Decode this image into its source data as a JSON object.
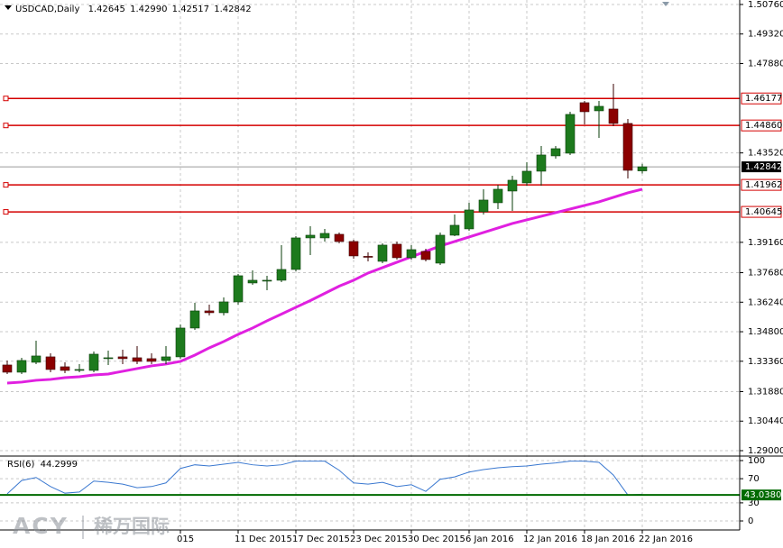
{
  "chart_data": {
    "type": "candlestick",
    "title": "USDCAD,Daily",
    "title_values": [
      {
        "value": 1.42645,
        "label": "1.42645"
      },
      {
        "value": 1.4299,
        "label": "1.42990"
      },
      {
        "value": 1.42517,
        "label": "1.42517"
      },
      {
        "value": 1.42842,
        "label": "1.42842"
      }
    ],
    "categories": [
      null,
      null,
      null,
      null,
      null,
      null,
      null,
      null,
      null,
      null,
      null,
      null,
      "015",
      null,
      null,
      null,
      "11 Dec 2015",
      null,
      null,
      null,
      "17 Dec 2015",
      null,
      null,
      null,
      "23 Dec 2015",
      null,
      null,
      null,
      "30 Dec 2015",
      null,
      null,
      null,
      "6 Jan 2016",
      null,
      null,
      null,
      "12 Jan 2016",
      null,
      null,
      null,
      "18 Jan 2016",
      null,
      null,
      null,
      "22 Jan 2016"
    ],
    "open": [
      1.33178,
      1.32826,
      1.3331,
      1.33574,
      1.3309,
      1.32914,
      1.32914,
      1.33508,
      1.33574,
      1.3353,
      1.33486,
      1.33398,
      1.33574,
      1.3498,
      1.35815,
      1.35727,
      1.36255,
      1.37178,
      1.37288,
      1.3731,
      1.37837,
      1.39376,
      1.39376,
      1.39551,
      1.392,
      1.38475,
      1.38233,
      1.39068,
      1.38409,
      1.38716,
      1.38145,
      1.39507,
      1.39815,
      1.4065,
      1.4109,
      1.41661,
      1.42057,
      1.42628,
      1.43376,
      1.43507,
      1.45969,
      1.45573,
      1.45661,
      1.44958,
      1.42645
    ],
    "high": [
      1.33398,
      1.3353,
      1.34365,
      1.33749,
      1.3331,
      1.33222,
      1.33837,
      1.33881,
      1.33925,
      1.34101,
      1.33749,
      1.34101,
      1.35156,
      1.36211,
      1.36123,
      1.36475,
      1.37617,
      1.37793,
      1.3753,
      1.39024,
      1.39464,
      1.39947,
      1.39815,
      1.39639,
      1.39288,
      1.38672,
      1.39112,
      1.392,
      1.39024,
      1.38848,
      1.39639,
      1.40519,
      1.4109,
      1.41749,
      1.41969,
      1.42409,
      1.43068,
      1.43859,
      1.43859,
      1.45529,
      1.46057,
      1.46057,
      1.46892,
      1.45178,
      1.4299
    ],
    "low": [
      1.32738,
      1.32738,
      1.33222,
      1.32826,
      1.32782,
      1.32826,
      1.32826,
      1.33178,
      1.33222,
      1.33222,
      1.33222,
      1.33222,
      1.33486,
      1.34892,
      1.35595,
      1.35595,
      1.36123,
      1.3709,
      1.36826,
      1.37222,
      1.37749,
      1.3854,
      1.392,
      1.39112,
      1.38365,
      1.38233,
      1.38145,
      1.38321,
      1.38321,
      1.38233,
      1.38057,
      1.39464,
      1.39727,
      1.40519,
      1.40782,
      1.40694,
      1.41925,
      1.41925,
      1.43244,
      1.4342,
      1.44914,
      1.44255,
      1.44826,
      1.42277,
      1.42517
    ],
    "close": [
      1.32826,
      1.33398,
      1.33618,
      1.32958,
      1.32914,
      1.32958,
      1.33705,
      1.3353,
      1.33486,
      1.33354,
      1.33354,
      1.33574,
      1.3498,
      1.35815,
      1.35727,
      1.36255,
      1.3753,
      1.3731,
      1.3731,
      1.37837,
      1.39376,
      1.39507,
      1.39595,
      1.392,
      1.38497,
      1.38453,
      1.39024,
      1.38409,
      1.38804,
      1.38321,
      1.39507,
      1.39991,
      1.40738,
      1.41222,
      1.41749,
      1.42189,
      1.42628,
      1.4342,
      1.43727,
      1.45398,
      1.45529,
      1.45793,
      1.44958,
      1.42672,
      1.42842
    ],
    "up_color": "#1d7a1d",
    "down_color": "#8b0000",
    "ma": {
      "color": "#e020e0",
      "values": [
        1.32299,
        1.32343,
        1.32431,
        1.32475,
        1.32562,
        1.32606,
        1.32694,
        1.32738,
        1.3287,
        1.33002,
        1.33134,
        1.33222,
        1.33354,
        1.33661,
        1.34013,
        1.34321,
        1.34672,
        1.3498,
        1.35332,
        1.35659,
        1.35991,
        1.36319,
        1.3667,
        1.37022,
        1.3731,
        1.37661,
        1.37925,
        1.38189,
        1.38453,
        1.38716,
        1.3898,
        1.392,
        1.3942,
        1.39639,
        1.39859,
        1.40079,
        1.40255,
        1.40431,
        1.40606,
        1.40782,
        1.40958,
        1.41134,
        1.41354,
        1.41573,
        1.41749
      ]
    },
    "ylim": [
      1.2878,
      1.5089
    ],
    "yticks": [
      {
        "value": 1.5076,
        "label": "1.50760"
      },
      {
        "value": 1.4932,
        "label": "1.49320"
      },
      {
        "value": 1.4788,
        "label": "1.47880"
      },
      {
        "value": 1.4352,
        "label": "1.43520"
      },
      {
        "value": 1.3916,
        "label": "1.39160"
      },
      {
        "value": 1.3768,
        "label": "1.37680"
      },
      {
        "value": 1.3624,
        "label": "1.36240"
      },
      {
        "value": 1.348,
        "label": "1.34800"
      },
      {
        "value": 1.3336,
        "label": "1.33360"
      },
      {
        "value": 1.3188,
        "label": "1.31880"
      },
      {
        "value": 1.3044,
        "label": "1.30440"
      },
      {
        "value": 1.29,
        "label": "1.29000"
      }
    ],
    "price_lines": {
      "color": "#d40000",
      "levels": [
        1.46177,
        {
          "value": 1.4486,
          "label": "1.44860"
        },
        1.41962,
        1.40645
      ]
    },
    "current_price": 1.42842,
    "grid": true,
    "rsi": {
      "title": "RSI(6)",
      "color": "#3a78d0",
      "values": [
        45,
        67,
        72,
        57,
        46,
        48,
        66,
        64,
        61,
        55,
        57,
        63,
        87,
        93,
        91,
        94,
        97,
        93,
        91,
        93,
        99,
        99,
        99,
        84,
        63,
        61,
        64,
        57,
        60,
        49,
        69,
        73,
        81,
        85,
        88,
        90,
        91,
        94,
        96,
        99,
        99,
        97,
        76,
        43,
        44.2999
      ],
      "ylim": [
        0,
        100
      ],
      "yticks": [
        100,
        70,
        30,
        0
      ],
      "level": {
        "value": 43.038,
        "label": "43.0380"
      },
      "level_color": "#006a00"
    }
  },
  "logo": {
    "brand": "ACY",
    "name": "稀万国际"
  }
}
